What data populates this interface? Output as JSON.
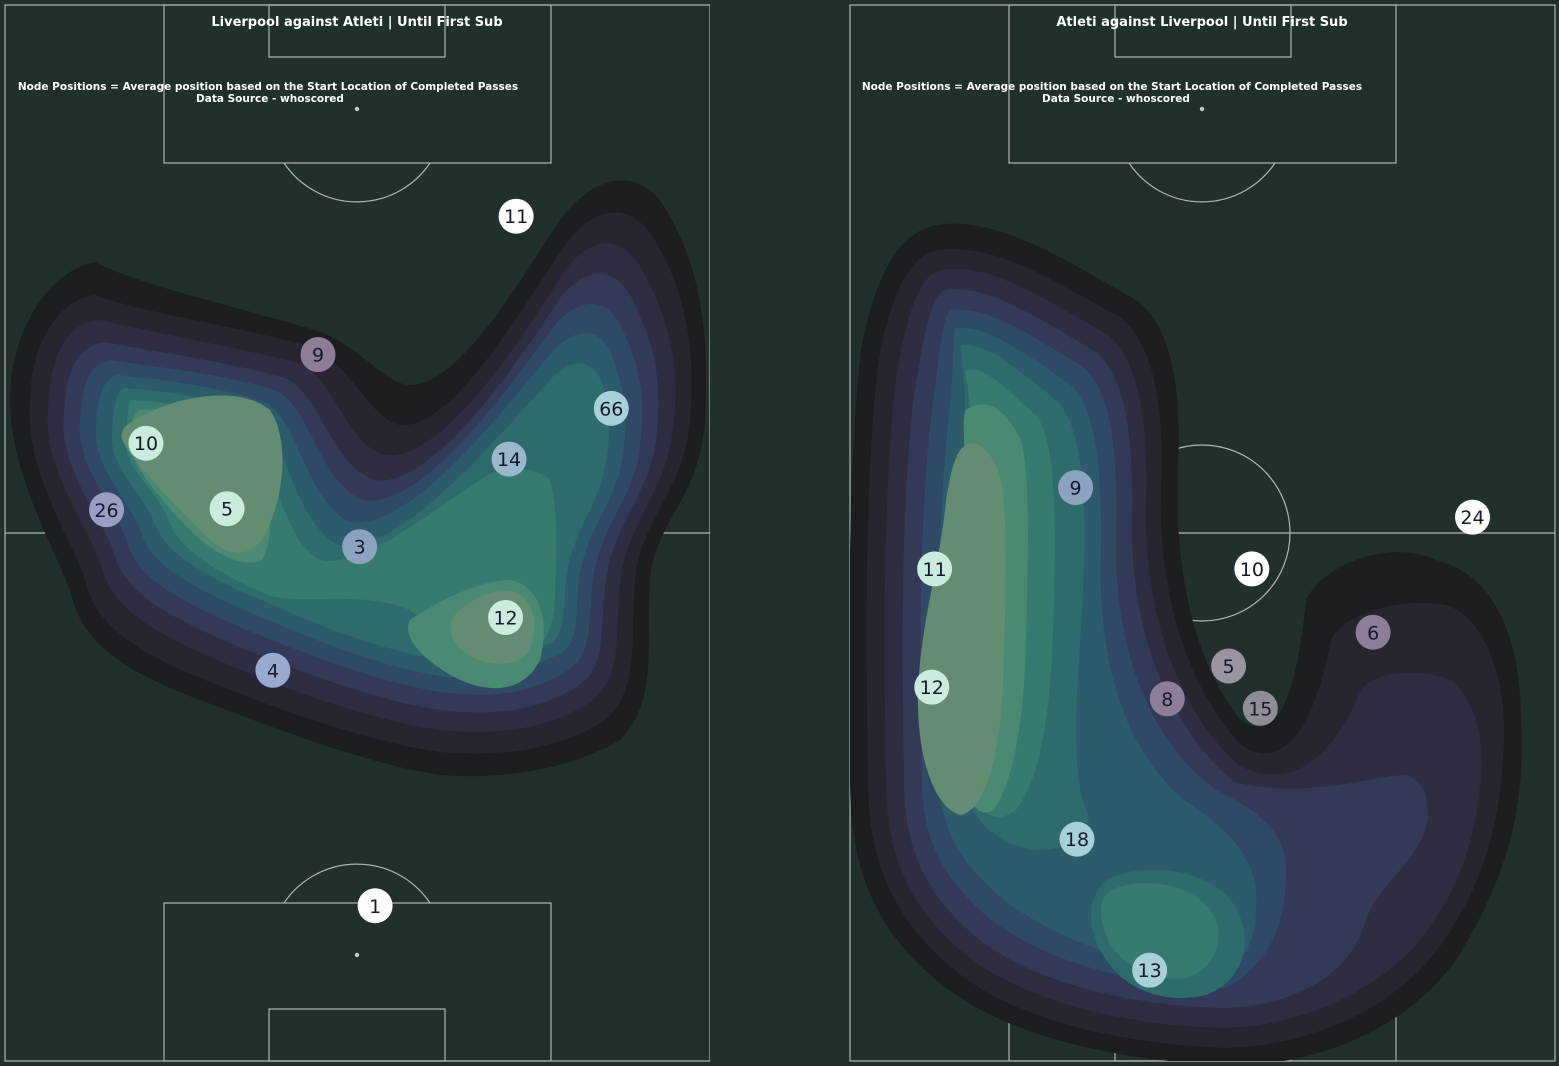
{
  "colors": {
    "background": "#22302d",
    "pitch_lines": "#c9c9c9",
    "density_palette": [
      "#1c1d20",
      "#27262f",
      "#2e2d41",
      "#323a58",
      "#2f4a66",
      "#2c5b6b",
      "#2e6b6c",
      "#367a70",
      "#4a8a72",
      "#648c72"
    ]
  },
  "chart_data": [
    {
      "type": "scatter",
      "title": "Liverpool against Atleti | Until First Sub",
      "subtitle_line1": "Node Positions = Average position based on the Start Location of Completed Passes",
      "subtitle_line2": "Data Source - whoscored",
      "pitch": {
        "x_range": [
          0,
          100
        ],
        "y_range": [
          0,
          100
        ],
        "orientation": "vertical"
      },
      "nodes": [
        {
          "label": "11",
          "x": 72.5,
          "y": 80.0,
          "color": "#ffffff"
        },
        {
          "label": "9",
          "x": 44.4,
          "y": 66.9,
          "color": "#8c7e96"
        },
        {
          "label": "66",
          "x": 86.0,
          "y": 61.8,
          "color": "#a8d0d8"
        },
        {
          "label": "10",
          "x": 20.0,
          "y": 58.5,
          "color": "#c9ecdc"
        },
        {
          "label": "14",
          "x": 71.5,
          "y": 57.0,
          "color": "#9ab8cc"
        },
        {
          "label": "26",
          "x": 14.4,
          "y": 52.2,
          "color": "#9a9ec2"
        },
        {
          "label": "5",
          "x": 31.5,
          "y": 52.3,
          "color": "#c9ecdc"
        },
        {
          "label": "3",
          "x": 50.3,
          "y": 48.7,
          "color": "#8aa4c0"
        },
        {
          "label": "12",
          "x": 71.0,
          "y": 42.0,
          "color": "#c9ecdc"
        },
        {
          "label": "4",
          "x": 38.0,
          "y": 37.0,
          "color": "#9aaace"
        },
        {
          "label": "1",
          "x": 52.5,
          "y": 14.7,
          "color": "#ffffff"
        }
      ]
    },
    {
      "type": "scatter",
      "title": "Atleti against Liverpool | Until First Sub",
      "subtitle_line1": "Node Positions = Average position based on the Start Location of Completed Passes",
      "subtitle_line2": "Data Source - whoscored",
      "pitch": {
        "x_range": [
          0,
          100
        ],
        "y_range": [
          0,
          100
        ],
        "orientation": "vertical"
      },
      "nodes": [
        {
          "label": "24",
          "x": 88.3,
          "y": 51.5,
          "color": "#ffffff"
        },
        {
          "label": "9",
          "x": 32.0,
          "y": 54.3,
          "color": "#8aa4c0"
        },
        {
          "label": "11",
          "x": 12.0,
          "y": 46.6,
          "color": "#c9ecdc"
        },
        {
          "label": "10",
          "x": 57.0,
          "y": 46.6,
          "color": "#ffffff"
        },
        {
          "label": "6",
          "x": 74.2,
          "y": 40.6,
          "color": "#8c7e96"
        },
        {
          "label": "5",
          "x": 53.7,
          "y": 37.4,
          "color": "#9a94a0"
        },
        {
          "label": "12",
          "x": 11.6,
          "y": 35.4,
          "color": "#c9ecdc"
        },
        {
          "label": "8",
          "x": 45.0,
          "y": 34.3,
          "color": "#8c7e96"
        },
        {
          "label": "15",
          "x": 58.2,
          "y": 33.4,
          "color": "#8e8e94"
        },
        {
          "label": "18",
          "x": 32.2,
          "y": 21.0,
          "color": "#a8d0d8"
        },
        {
          "label": "13",
          "x": 42.5,
          "y": 8.6,
          "color": "#a8d0d8"
        }
      ]
    }
  ]
}
